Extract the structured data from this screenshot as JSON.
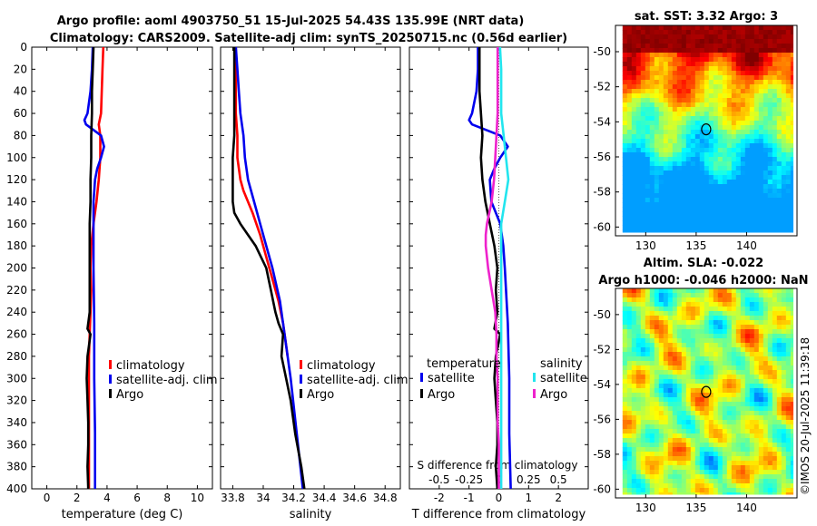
{
  "title": {
    "line1": "Argo profile: aoml 4903750_51 15-Jul-2025 54.43S 135.99E (NRT data)",
    "line2": "Climatology: CARS2009. Satellite-adj clim: synTS_20250715.nc (0.56d earlier)"
  },
  "colors": {
    "climatology": "#ff0000",
    "satellite": "#0000ee",
    "argo": "#000000",
    "sal_satellite": "#22e5ee",
    "sal_argo": "#ee22cc"
  },
  "chart_data": [
    {
      "type": "line",
      "id": "temperature",
      "xlabel": "temperature (deg C)",
      "xlim": [
        -1,
        11
      ],
      "xticks": [
        "0",
        "2",
        "4",
        "6",
        "8",
        "10"
      ],
      "ylim": [
        0,
        400
      ],
      "yticks": [
        "0",
        "20",
        "40",
        "60",
        "80",
        "100",
        "120",
        "140",
        "160",
        "180",
        "200",
        "220",
        "240",
        "260",
        "280",
        "300",
        "320",
        "340",
        "360",
        "380",
        "400"
      ],
      "legend": [
        "climatology",
        "satellite-adj. clim",
        "Argo"
      ],
      "series": [
        {
          "name": "climatology",
          "depth": [
            0,
            20,
            40,
            60,
            70,
            80,
            100,
            120,
            140,
            160,
            180,
            200,
            220,
            240,
            260,
            280,
            300,
            320,
            340,
            360,
            380,
            400
          ],
          "values": [
            3.75,
            3.7,
            3.65,
            3.6,
            3.45,
            3.55,
            3.55,
            3.45,
            3.3,
            3.1,
            2.95,
            2.9,
            2.95,
            2.9,
            2.85,
            2.8,
            2.8,
            2.8,
            2.8,
            2.8,
            2.8,
            2.8
          ]
        },
        {
          "name": "satellite-adj. clim",
          "depth": [
            0,
            20,
            40,
            60,
            66,
            70,
            80,
            90,
            100,
            110,
            120,
            140,
            160,
            200,
            250,
            300,
            350,
            400
          ],
          "values": [
            3.05,
            3.0,
            2.9,
            2.7,
            2.5,
            2.6,
            3.6,
            3.8,
            3.6,
            3.35,
            3.2,
            3.1,
            3.1,
            3.1,
            3.15,
            3.15,
            3.2,
            3.2
          ]
        },
        {
          "name": "Argo",
          "depth": [
            0,
            20,
            40,
            60,
            80,
            100,
            120,
            140,
            160,
            180,
            200,
            220,
            240,
            255,
            260,
            280,
            300,
            320,
            340,
            360,
            380,
            400
          ],
          "values": [
            3.1,
            3.05,
            3.0,
            3.0,
            2.95,
            2.95,
            2.9,
            2.9,
            2.85,
            2.85,
            2.85,
            2.85,
            2.85,
            2.7,
            2.9,
            2.7,
            2.65,
            2.7,
            2.75,
            2.75,
            2.7,
            2.75
          ]
        }
      ]
    },
    {
      "type": "line",
      "id": "salinity",
      "xlabel": "salinity",
      "xlim": [
        33.72,
        34.9
      ],
      "xticks": [
        "33.8",
        "34",
        "34.2",
        "34.4",
        "34.6",
        "34.8"
      ],
      "ylim": [
        0,
        400
      ],
      "legend": [
        "climatology",
        "satellite-adj. clim",
        "Argo"
      ],
      "series": [
        {
          "name": "climatology",
          "depth": [
            0,
            20,
            40,
            60,
            80,
            100,
            120,
            130,
            150,
            170,
            190,
            210,
            230,
            250,
            270,
            280
          ],
          "values": [
            33.82,
            33.82,
            33.82,
            33.82,
            33.83,
            33.83,
            33.85,
            33.87,
            33.93,
            33.98,
            34.02,
            34.06,
            34.1,
            34.13,
            34.15,
            34.16
          ]
        },
        {
          "name": "satellite-adj. clim",
          "depth": [
            0,
            20,
            40,
            60,
            80,
            100,
            120,
            140,
            160,
            180,
            200,
            230,
            260,
            300,
            350,
            400
          ],
          "values": [
            33.82,
            33.83,
            33.84,
            33.85,
            33.87,
            33.88,
            33.9,
            33.94,
            33.98,
            34.02,
            34.06,
            34.11,
            34.14,
            34.18,
            34.22,
            34.26
          ]
        },
        {
          "name": "Argo",
          "depth": [
            0,
            20,
            40,
            60,
            80,
            100,
            120,
            140,
            150,
            160,
            170,
            180,
            200,
            220,
            240,
            250,
            260,
            280,
            300,
            320,
            350,
            380,
            400
          ],
          "values": [
            33.81,
            33.81,
            33.81,
            33.81,
            33.81,
            33.8,
            33.8,
            33.8,
            33.81,
            33.85,
            33.9,
            33.95,
            34.02,
            34.05,
            34.08,
            34.1,
            34.13,
            34.12,
            34.15,
            34.18,
            34.21,
            34.25,
            34.27
          ]
        }
      ]
    },
    {
      "type": "line",
      "id": "difference",
      "xlabel": "T difference from climatology",
      "xlim": [
        -3,
        3
      ],
      "xticks": [
        "-2",
        "-1",
        "0",
        "1",
        "2"
      ],
      "s_label": "S difference from climatology",
      "s_xlim": [
        -0.75,
        0.75
      ],
      "s_ticks": [
        "-0.5",
        "-0.25",
        "0",
        "0.25",
        "0.5"
      ],
      "ylim": [
        0,
        400
      ],
      "legend_temperature_title": "temperature",
      "legend_salinity_title": "salinity",
      "legend_temperature": [
        "satellite",
        "Argo"
      ],
      "legend_salinity": [
        "satellite",
        "Argo"
      ],
      "series": [
        {
          "name": "temperature satellite",
          "depth": [
            0,
            20,
            40,
            60,
            66,
            70,
            80,
            90,
            100,
            110,
            120,
            140,
            160,
            180,
            200,
            250,
            300,
            350,
            400
          ],
          "values": [
            -0.7,
            -0.7,
            -0.75,
            -0.9,
            -1.0,
            -0.9,
            0.05,
            0.3,
            0.05,
            -0.15,
            -0.3,
            -0.25,
            0.05,
            0.15,
            0.2,
            0.3,
            0.35,
            0.35,
            0.4
          ]
        },
        {
          "name": "temperature Argo",
          "depth": [
            0,
            20,
            40,
            60,
            80,
            100,
            120,
            140,
            160,
            180,
            200,
            220,
            240,
            255,
            260,
            280,
            300,
            320,
            340,
            360,
            380,
            400
          ],
          "values": [
            -0.65,
            -0.65,
            -0.65,
            -0.6,
            -0.55,
            -0.6,
            -0.55,
            -0.45,
            -0.3,
            -0.15,
            -0.05,
            -0.1,
            -0.05,
            -0.15,
            0.05,
            -0.1,
            -0.15,
            -0.1,
            -0.05,
            -0.05,
            -0.1,
            -0.05
          ]
        },
        {
          "name": "salinity satellite",
          "depth": [
            0,
            20,
            40,
            60,
            80,
            100,
            120,
            140,
            160,
            180,
            200,
            240,
            280,
            320,
            360,
            400
          ],
          "values": [
            0.01,
            0.02,
            0.02,
            0.02,
            0.04,
            0.06,
            0.08,
            0.05,
            0.02,
            0.02,
            0.02,
            0.02,
            0.02,
            0.02,
            0.02,
            0.02
          ]
        },
        {
          "name": "salinity Argo",
          "depth": [
            0,
            20,
            40,
            60,
            80,
            100,
            120,
            140,
            160,
            170,
            180,
            200,
            220,
            240,
            260,
            280,
            300,
            320,
            340,
            360,
            380,
            400
          ],
          "values": [
            -0.01,
            -0.01,
            -0.01,
            -0.01,
            -0.02,
            -0.03,
            -0.04,
            -0.06,
            -0.1,
            -0.11,
            -0.11,
            -0.09,
            -0.06,
            -0.03,
            -0.02,
            -0.02,
            -0.01,
            -0.01,
            -0.01,
            0.0,
            0.0,
            0.0
          ]
        }
      ]
    },
    {
      "type": "heatmap",
      "id": "sst-map",
      "title": "sat. SST: 3.32 Argo: 3",
      "xlim": [
        127,
        145
      ],
      "ylim": [
        -60.5,
        -48.5
      ],
      "xticks": [
        "130",
        "135",
        "140"
      ],
      "yticks": [
        "-50",
        "-52",
        "-54",
        "-56",
        "-58",
        "-60"
      ],
      "marker": {
        "lon": 135.99,
        "lat": -54.43
      }
    },
    {
      "type": "heatmap",
      "id": "sla-map",
      "title_line1": "Altim. SLA: -0.022",
      "title_line2": "Argo h1000: -0.046 h2000: NaN",
      "xlim": [
        127,
        145
      ],
      "ylim": [
        -60.5,
        -48.5
      ],
      "xticks": [
        "130",
        "135",
        "140"
      ],
      "yticks": [
        "-50",
        "-52",
        "-54",
        "-56",
        "-58",
        "-60"
      ],
      "marker": {
        "lon": 135.99,
        "lat": -54.43
      }
    }
  ],
  "watermark": "©IMOS 20-Jul-2025 11:39:18"
}
